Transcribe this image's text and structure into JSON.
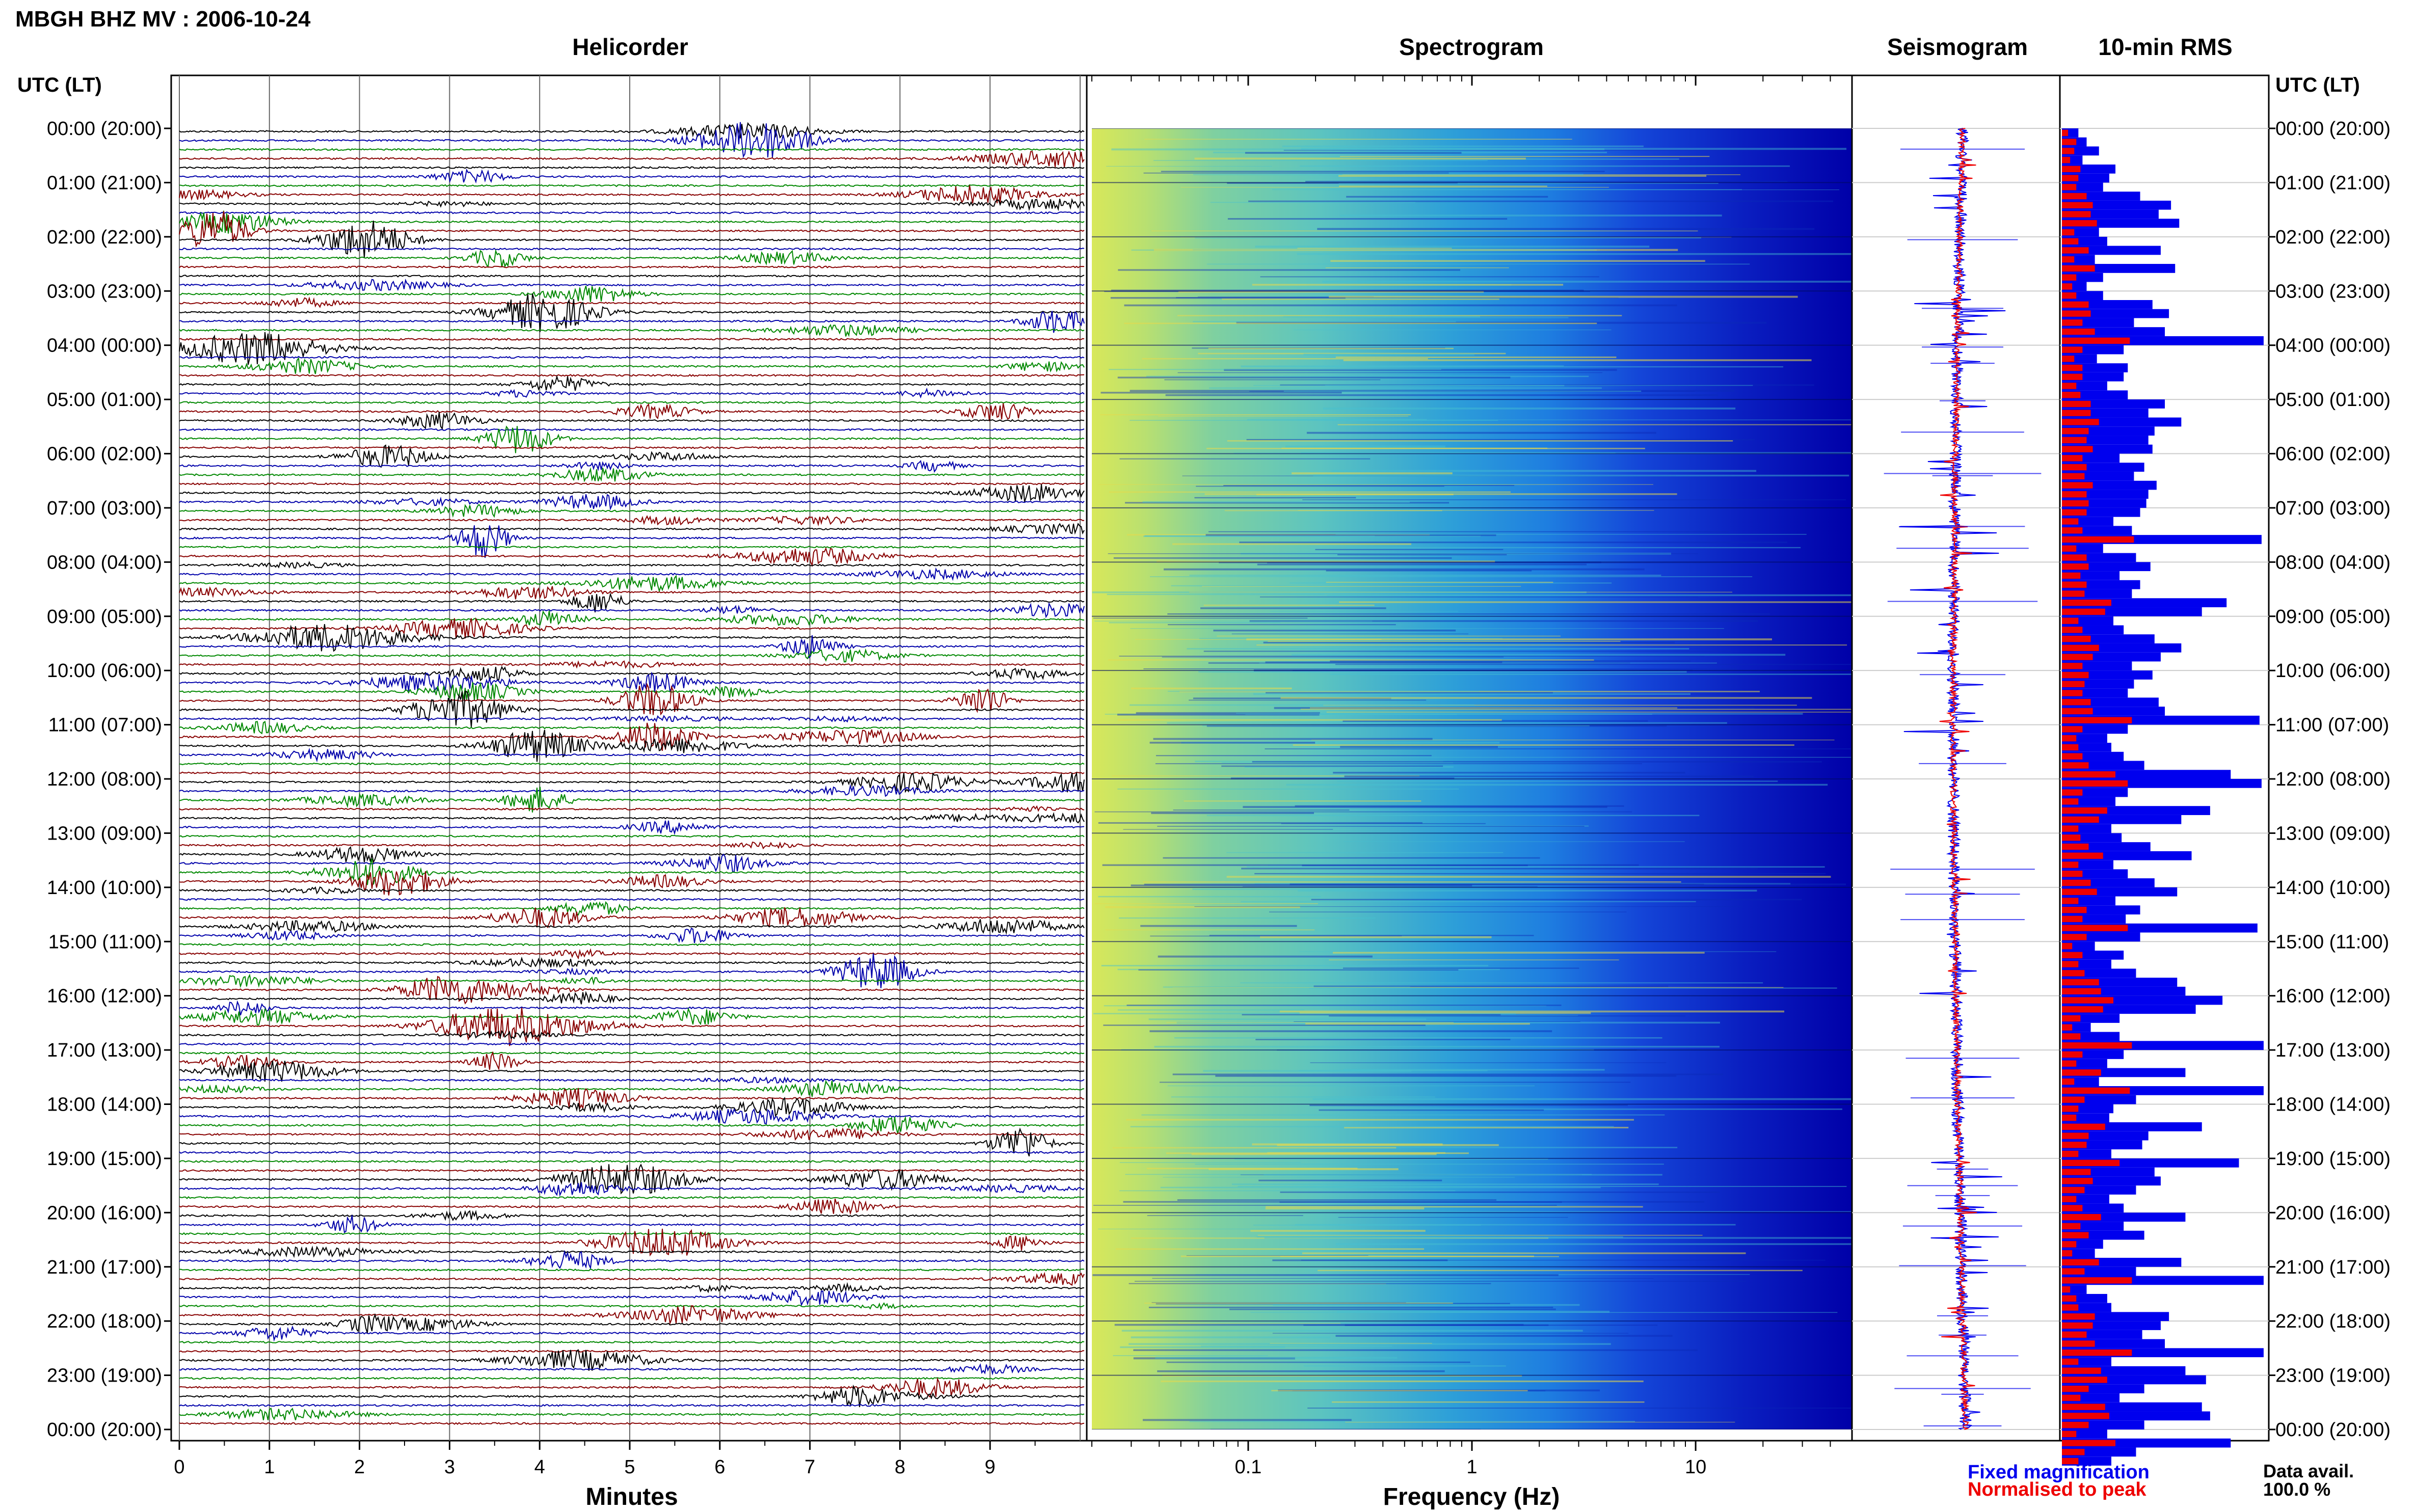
{
  "header": {
    "station_title": "MBGH BHZ MV : 2006-10-24",
    "utc_label": "UTC (LT)",
    "panel_titles": {
      "helicorder": "Helicorder",
      "spectrogram": "Spectrogram",
      "seismogram": "Seismogram",
      "rms": "10-min RMS"
    }
  },
  "footer": {
    "minutes_label": "Minutes",
    "frequency_label": "Frequency (Hz)",
    "legend_fixed": "Fixed magnification",
    "legend_normalised": "Normalised to peak",
    "data_avail_label": "Data avail.",
    "data_avail_value": "100.0 %"
  },
  "colors": {
    "trace_cycle": [
      "#000000",
      "#0000aa",
      "#008800",
      "#880000"
    ],
    "fixed_magnification": "#0000ee",
    "normalised_to_peak": "#ee0000",
    "spectrogram_low": "#ffd700",
    "spectrogram_mid": "#00b0c8",
    "spectrogram_high": "#0000aa"
  },
  "chart_data": [
    {
      "type": "helicorder",
      "title": "Helicorder",
      "xlabel": "Minutes",
      "x_ticks": [
        "0",
        "1",
        "2",
        "3",
        "4",
        "5",
        "6",
        "7",
        "8",
        "9"
      ],
      "xlim": [
        0,
        10
      ],
      "rows_per_hour": 6,
      "row_labels": [
        "00:00 (20:00)",
        "01:00 (21:00)",
        "02:00 (22:00)",
        "03:00 (23:00)",
        "04:00 (00:00)",
        "05:00 (01:00)",
        "06:00 (02:00)",
        "07:00 (03:00)",
        "08:00 (04:00)",
        "09:00 (05:00)",
        "10:00 (06:00)",
        "11:00 (07:00)",
        "12:00 (08:00)",
        "13:00 (09:00)",
        "14:00 (10:00)",
        "15:00 (11:00)",
        "16:00 (12:00)",
        "17:00 (13:00)",
        "18:00 (14:00)",
        "19:00 (15:00)",
        "20:00 (16:00)",
        "21:00 (17:00)",
        "22:00 (18:00)",
        "23:00 (19:00)",
        "00:00 (20:00)"
      ]
    },
    {
      "type": "heatmap",
      "title": "Spectrogram",
      "xlabel": "Frequency (Hz)",
      "x_scale": "log",
      "xlim": [
        0.02,
        50
      ],
      "x_ticks": [
        "0.1",
        "1",
        "10"
      ]
    },
    {
      "type": "line",
      "title": "Seismogram",
      "series": [
        {
          "name": "Fixed magnification"
        },
        {
          "name": "Normalised to peak"
        }
      ]
    },
    {
      "type": "bar",
      "title": "10-min RMS",
      "orientation": "horizontal",
      "categories_per_hour": 6,
      "fixed_magnification": [
        0.08,
        0.12,
        0.18,
        0.1,
        0.26,
        0.23,
        0.2,
        0.38,
        0.53,
        0.47,
        0.57,
        0.18,
        0.22,
        0.48,
        0.16,
        0.55,
        0.2,
        0.12,
        0.2,
        0.44,
        0.52,
        0.35,
        0.5,
        0.98,
        0.3,
        0.17,
        0.32,
        0.3,
        0.22,
        0.32,
        0.5,
        0.42,
        0.58,
        0.45,
        0.42,
        0.44,
        0.28,
        0.4,
        0.35,
        0.46,
        0.42,
        0.41,
        0.38,
        0.25,
        0.34,
        0.97,
        0.2,
        0.36,
        0.43,
        0.28,
        0.38,
        0.34,
        0.8,
        0.68,
        0.25,
        0.3,
        0.45,
        0.58,
        0.48,
        0.34,
        0.44,
        0.35,
        0.32,
        0.47,
        0.5,
        0.96,
        0.32,
        0.22,
        0.24,
        0.3,
        0.4,
        0.82,
        0.97,
        0.32,
        0.26,
        0.72,
        0.58,
        0.24,
        0.29,
        0.43,
        0.63,
        0.25,
        0.32,
        0.45,
        0.56,
        0.26,
        0.38,
        0.31,
        0.95,
        0.38,
        0.16,
        0.3,
        0.24,
        0.36,
        0.56,
        0.6,
        0.78,
        0.65,
        0.28,
        0.14,
        0.28,
        0.98,
        0.3,
        0.22,
        0.6,
        0.18,
        0.98,
        0.36,
        0.25,
        0.23,
        0.68,
        0.42,
        0.39,
        0.24,
        0.86,
        0.45,
        0.48,
        0.36,
        0.23,
        0.3,
        0.6,
        0.3,
        0.4,
        0.2,
        0.16,
        0.58,
        0.36,
        0.98,
        0.12,
        0.22,
        0.24,
        0.52,
        0.48,
        0.39,
        0.5,
        0.98,
        0.24,
        0.6,
        0.7,
        0.4,
        0.28,
        0.68,
        0.72,
        0.4,
        0.22,
        0.82,
        0.36,
        0.24
      ],
      "normalised_to_peak": [
        0.03,
        0.07,
        0.06,
        0.04,
        0.09,
        0.08,
        0.07,
        0.12,
        0.15,
        0.14,
        0.17,
        0.06,
        0.08,
        0.13,
        0.06,
        0.16,
        0.07,
        0.05,
        0.07,
        0.13,
        0.14,
        0.1,
        0.16,
        0.33,
        0.1,
        0.06,
        0.1,
        0.1,
        0.07,
        0.09,
        0.14,
        0.14,
        0.18,
        0.13,
        0.12,
        0.15,
        0.1,
        0.12,
        0.11,
        0.15,
        0.12,
        0.13,
        0.12,
        0.08,
        0.1,
        0.35,
        0.07,
        0.12,
        0.13,
        0.09,
        0.12,
        0.11,
        0.24,
        0.21,
        0.08,
        0.1,
        0.14,
        0.18,
        0.15,
        0.1,
        0.13,
        0.11,
        0.1,
        0.14,
        0.15,
        0.34,
        0.1,
        0.07,
        0.08,
        0.1,
        0.13,
        0.26,
        0.32,
        0.1,
        0.08,
        0.22,
        0.18,
        0.08,
        0.09,
        0.13,
        0.2,
        0.08,
        0.1,
        0.14,
        0.17,
        0.08,
        0.12,
        0.1,
        0.32,
        0.12,
        0.05,
        0.1,
        0.08,
        0.11,
        0.18,
        0.19,
        0.25,
        0.2,
        0.09,
        0.05,
        0.09,
        0.34,
        0.1,
        0.07,
        0.19,
        0.06,
        0.33,
        0.11,
        0.08,
        0.07,
        0.21,
        0.13,
        0.12,
        0.08,
        0.28,
        0.14,
        0.15,
        0.11,
        0.07,
        0.1,
        0.19,
        0.09,
        0.13,
        0.07,
        0.05,
        0.18,
        0.11,
        0.34,
        0.04,
        0.07,
        0.08,
        0.16,
        0.15,
        0.12,
        0.16,
        0.34,
        0.08,
        0.19,
        0.22,
        0.13,
        0.09,
        0.21,
        0.23,
        0.13,
        0.07,
        0.26,
        0.11,
        0.08
      ]
    }
  ]
}
